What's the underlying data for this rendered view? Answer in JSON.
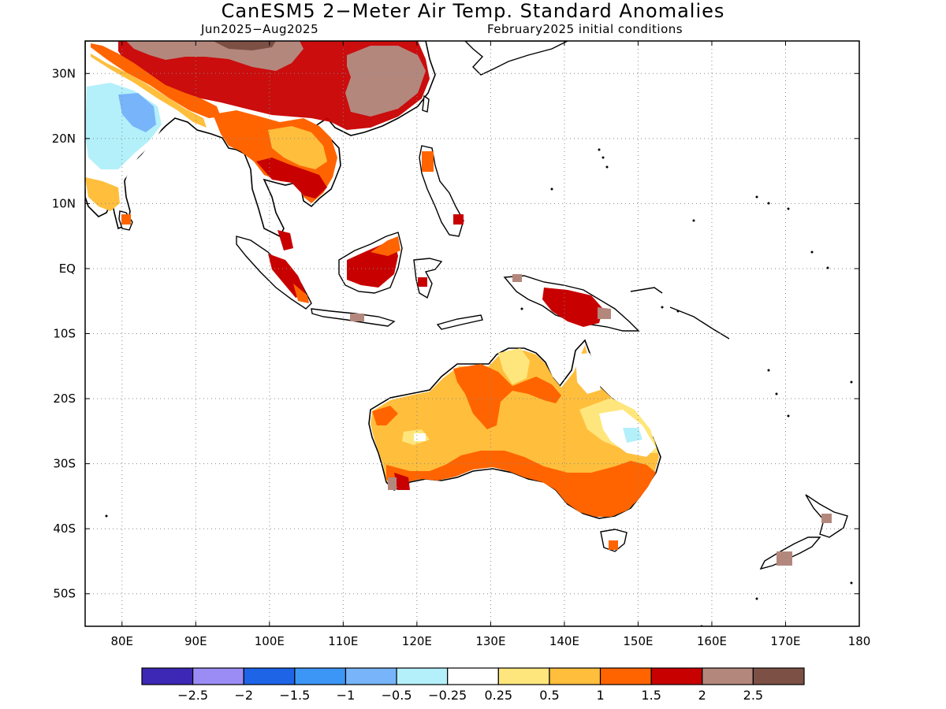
{
  "title": "CanESM5 2−Meter Air Temp. Standard Anomalies",
  "subtitle_left": "Jun2025−Aug2025",
  "subtitle_right": "February2025 initial conditions",
  "map": {
    "lon_range": [
      75,
      180
    ],
    "lat_range": [
      -55,
      35
    ],
    "lon_ticks": [
      {
        "value": 80,
        "label": "80E"
      },
      {
        "value": 90,
        "label": "90E"
      },
      {
        "value": 100,
        "label": "100E"
      },
      {
        "value": 110,
        "label": "110E"
      },
      {
        "value": 120,
        "label": "120E"
      },
      {
        "value": 130,
        "label": "130E"
      },
      {
        "value": 140,
        "label": "140E"
      },
      {
        "value": 150,
        "label": "150E"
      },
      {
        "value": 160,
        "label": "160E"
      },
      {
        "value": 170,
        "label": "170E"
      },
      {
        "value": 180,
        "label": "180"
      }
    ],
    "lat_ticks": [
      {
        "value": 30,
        "label": "30N"
      },
      {
        "value": 20,
        "label": "20N"
      },
      {
        "value": 10,
        "label": "10N"
      },
      {
        "value": 0,
        "label": "EQ"
      },
      {
        "value": -10,
        "label": "10S"
      },
      {
        "value": -20,
        "label": "20S"
      },
      {
        "value": -30,
        "label": "30S"
      },
      {
        "value": -40,
        "label": "40S"
      },
      {
        "value": -50,
        "label": "50S"
      }
    ],
    "grid": "dotted"
  },
  "colorbar": {
    "colors": [
      "#3c28b4",
      "#9b8cf5",
      "#1e64e6",
      "#3c96f5",
      "#78b4fa",
      "#b4f0fa",
      "#ffffff",
      "#ffe67c",
      "#ffbe3c",
      "#ff6400",
      "#c80000",
      "#b4877d",
      "#7d5046"
    ],
    "labels": [
      "−2.5",
      "−2",
      "−1.5",
      "−1",
      "−0.5",
      "−0.25",
      "0.25",
      "0.5",
      "1",
      "1.5",
      "2",
      "2.5"
    ]
  },
  "regions": [
    {
      "name": "Australia",
      "anomaly_class": "0.5 to 1"
    },
    {
      "name": "Northwest Australia",
      "anomaly_class": "1 to 1.5"
    },
    {
      "name": "Southeast Australia",
      "anomaly_class": "1 to 1.5"
    },
    {
      "name": "Eastern Australia interior",
      "anomaly_class": "-0.25 to 0.25"
    },
    {
      "name": "Southern China",
      "anomaly_class": "1.5 to 2"
    },
    {
      "name": "Indochina",
      "anomaly_class": "1 to 1.5"
    },
    {
      "name": "India",
      "anomaly_class": "-1 to -0.25"
    },
    {
      "name": "Borneo",
      "anomaly_class": "1.5 to 2"
    },
    {
      "name": "New Guinea",
      "anomaly_class": "1.5 to 2"
    },
    {
      "name": "New Zealand",
      "anomaly_class": "2 to 2.5"
    }
  ]
}
